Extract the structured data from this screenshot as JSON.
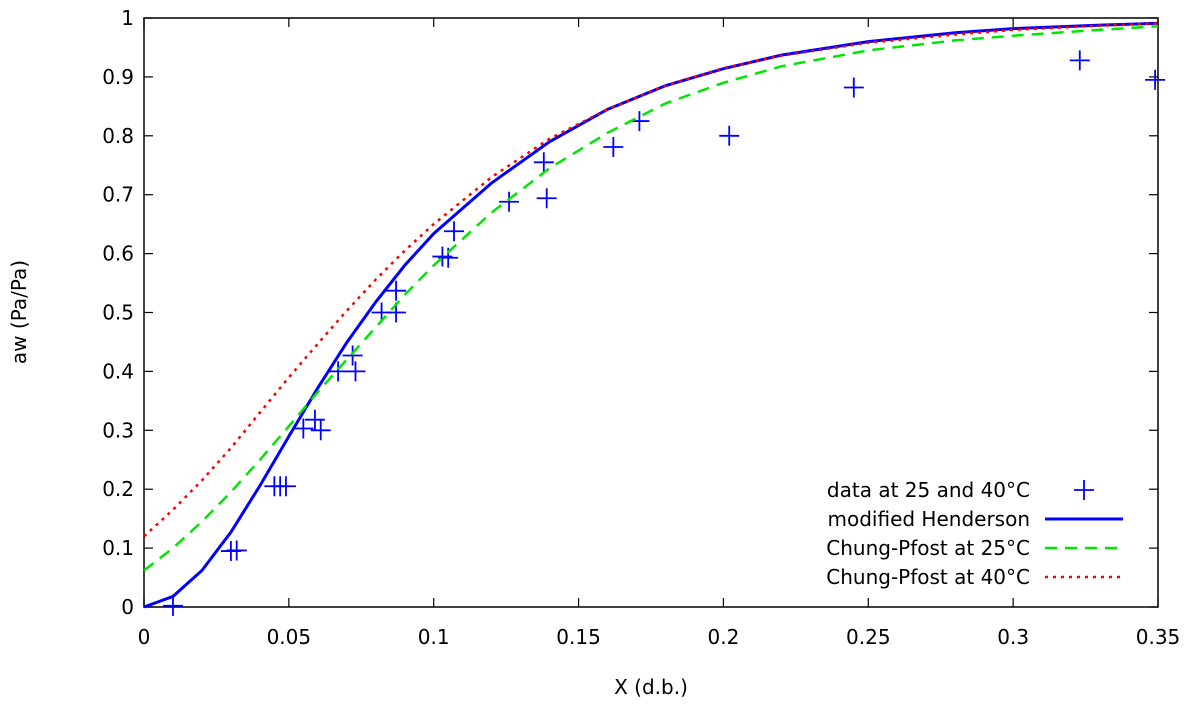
{
  "chart_data": {
    "type": "scatter",
    "xlabel": "X (d.b.)",
    "ylabel": "aw (Pa/Pa)",
    "xlim": [
      0,
      0.35
    ],
    "ylim": [
      0,
      1
    ],
    "xticks": [
      0,
      0.05,
      0.1,
      0.15,
      0.2,
      0.25,
      0.3,
      0.35
    ],
    "xtick_labels": [
      "0",
      "0.05",
      "0.1",
      "0.15",
      "0.2",
      "0.25",
      "0.3",
      "0.35"
    ],
    "yticks": [
      0,
      0.1,
      0.2,
      0.3,
      0.4,
      0.5,
      0.6,
      0.7,
      0.8,
      0.9,
      1
    ],
    "ytick_labels": [
      "0",
      "0.1",
      "0.2",
      "0.3",
      "0.4",
      "0.5",
      "0.6",
      "0.7",
      "0.8",
      "0.9",
      "1"
    ],
    "grid": false,
    "legend_position": "bottom-right",
    "series": [
      {
        "name": "data at 25 and 40°C",
        "kind": "points",
        "marker": "plus",
        "color": "#0000ff",
        "points": [
          [
            0.01,
            0.002
          ],
          [
            0.03,
            0.095
          ],
          [
            0.032,
            0.096
          ],
          [
            0.045,
            0.205
          ],
          [
            0.047,
            0.205
          ],
          [
            0.049,
            0.205
          ],
          [
            0.055,
            0.303
          ],
          [
            0.059,
            0.318
          ],
          [
            0.061,
            0.3
          ],
          [
            0.067,
            0.4
          ],
          [
            0.072,
            0.427
          ],
          [
            0.073,
            0.4
          ],
          [
            0.082,
            0.5
          ],
          [
            0.087,
            0.537
          ],
          [
            0.087,
            0.5
          ],
          [
            0.103,
            0.595
          ],
          [
            0.105,
            0.593
          ],
          [
            0.107,
            0.638
          ],
          [
            0.126,
            0.688
          ],
          [
            0.138,
            0.755
          ],
          [
            0.139,
            0.694
          ],
          [
            0.162,
            0.781
          ],
          [
            0.171,
            0.825
          ],
          [
            0.202,
            0.8
          ],
          [
            0.245,
            0.882
          ],
          [
            0.323,
            0.928
          ],
          [
            0.349,
            0.895
          ]
        ]
      },
      {
        "name": "modified Henderson",
        "kind": "line",
        "style": "solid",
        "color": "#0000ff",
        "points": [
          [
            0,
            0
          ],
          [
            0.01,
            0.018
          ],
          [
            0.02,
            0.062
          ],
          [
            0.03,
            0.127
          ],
          [
            0.04,
            0.206
          ],
          [
            0.05,
            0.29
          ],
          [
            0.06,
            0.372
          ],
          [
            0.07,
            0.449
          ],
          [
            0.08,
            0.518
          ],
          [
            0.09,
            0.58
          ],
          [
            0.1,
            0.634
          ],
          [
            0.12,
            0.72
          ],
          [
            0.14,
            0.79
          ],
          [
            0.16,
            0.845
          ],
          [
            0.18,
            0.885
          ],
          [
            0.2,
            0.914
          ],
          [
            0.22,
            0.937
          ],
          [
            0.25,
            0.96
          ],
          [
            0.28,
            0.975
          ],
          [
            0.3,
            0.982
          ],
          [
            0.33,
            0.988
          ],
          [
            0.35,
            0.991
          ]
        ]
      },
      {
        "name": "Chung-Pfost at 25°C",
        "kind": "line",
        "style": "dashed",
        "color": "#00e600",
        "points": [
          [
            0,
            0.062
          ],
          [
            0.01,
            0.1
          ],
          [
            0.02,
            0.145
          ],
          [
            0.03,
            0.195
          ],
          [
            0.04,
            0.25
          ],
          [
            0.05,
            0.307
          ],
          [
            0.06,
            0.365
          ],
          [
            0.07,
            0.42
          ],
          [
            0.08,
            0.475
          ],
          [
            0.09,
            0.53
          ],
          [
            0.1,
            0.58
          ],
          [
            0.12,
            0.67
          ],
          [
            0.14,
            0.745
          ],
          [
            0.16,
            0.805
          ],
          [
            0.18,
            0.855
          ],
          [
            0.2,
            0.89
          ],
          [
            0.22,
            0.918
          ],
          [
            0.25,
            0.945
          ],
          [
            0.28,
            0.962
          ],
          [
            0.3,
            0.97
          ],
          [
            0.33,
            0.98
          ],
          [
            0.35,
            0.986
          ]
        ]
      },
      {
        "name": "Chung-Pfost at 40°C",
        "kind": "line",
        "style": "dotted",
        "color": "#ff0000",
        "points": [
          [
            0,
            0.12
          ],
          [
            0.01,
            0.165
          ],
          [
            0.02,
            0.215
          ],
          [
            0.03,
            0.27
          ],
          [
            0.04,
            0.33
          ],
          [
            0.05,
            0.39
          ],
          [
            0.06,
            0.447
          ],
          [
            0.07,
            0.503
          ],
          [
            0.08,
            0.556
          ],
          [
            0.09,
            0.605
          ],
          [
            0.1,
            0.65
          ],
          [
            0.12,
            0.73
          ],
          [
            0.14,
            0.795
          ],
          [
            0.16,
            0.845
          ],
          [
            0.18,
            0.885
          ],
          [
            0.2,
            0.915
          ],
          [
            0.22,
            0.936
          ],
          [
            0.25,
            0.958
          ],
          [
            0.28,
            0.972
          ],
          [
            0.3,
            0.98
          ],
          [
            0.33,
            0.987
          ],
          [
            0.35,
            0.991
          ]
        ]
      }
    ]
  }
}
